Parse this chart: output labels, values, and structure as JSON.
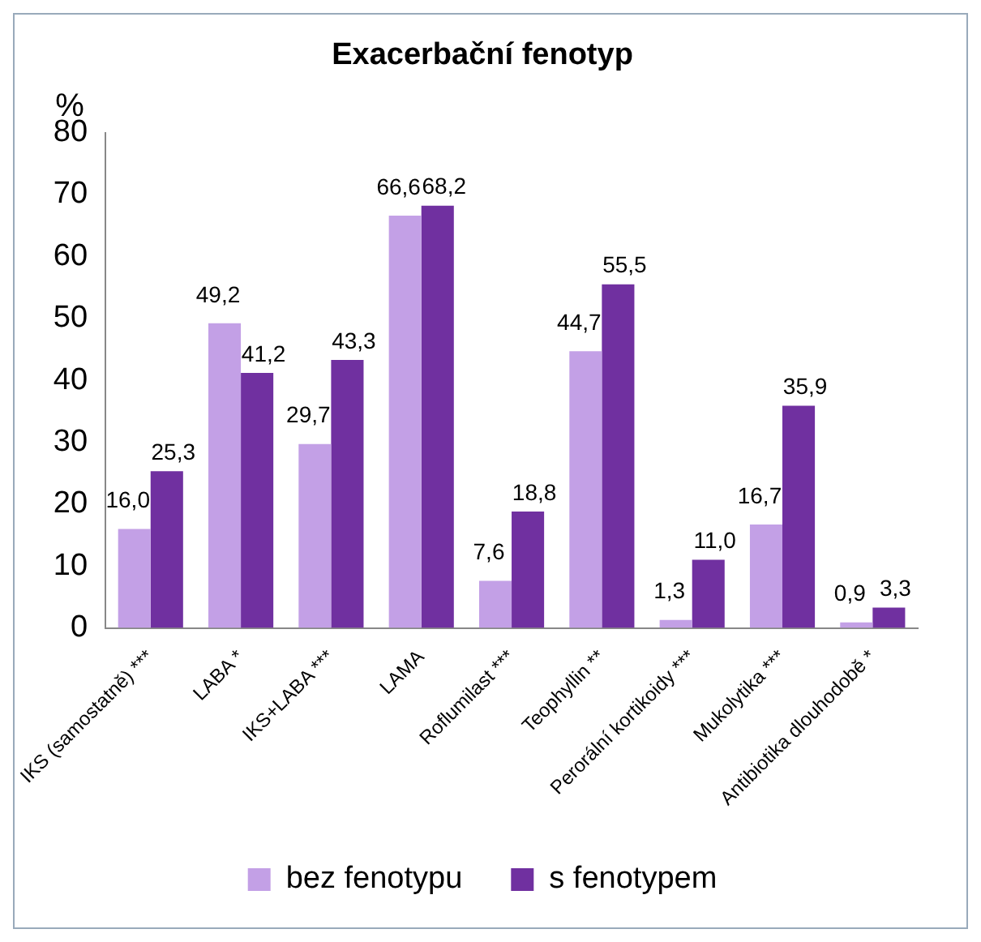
{
  "chart_data": {
    "type": "bar",
    "title": "Exacerbační fenotyp",
    "ylabel": "%",
    "categories": [
      "IKS (samostatně) ***",
      "LABA *",
      "IKS+LABA ***",
      "LAMA",
      "Roflumilast ***",
      "Teophyllin **",
      "Perorální kortikoidy ***",
      "Mukolytika ***",
      "Antibiotika dlouhodobě *"
    ],
    "series": [
      {
        "name": "bez fenotypu",
        "color": "#c3a0e6",
        "values": [
          16.0,
          49.2,
          29.7,
          66.6,
          7.6,
          44.7,
          1.3,
          16.7,
          0.9
        ],
        "value_labels": [
          "16,0",
          "49,2",
          "29,7",
          "66,6",
          "7,6",
          "44,7",
          "1,3",
          "16,7",
          "0,9"
        ]
      },
      {
        "name": "s fenotypem",
        "color": "#7030a0",
        "values": [
          25.3,
          41.2,
          43.3,
          68.2,
          18.8,
          55.5,
          11.0,
          35.9,
          3.3
        ],
        "value_labels": [
          "25,3",
          "41,2",
          "43,3",
          "68,2",
          "18,8",
          "55,5",
          "11,0",
          "35,9",
          "3,3"
        ]
      }
    ],
    "ylim": [
      0,
      80
    ],
    "yticks": [
      0,
      10,
      20,
      30,
      40,
      50,
      60,
      70,
      80
    ],
    "grid": false,
    "legend": "bottom"
  }
}
